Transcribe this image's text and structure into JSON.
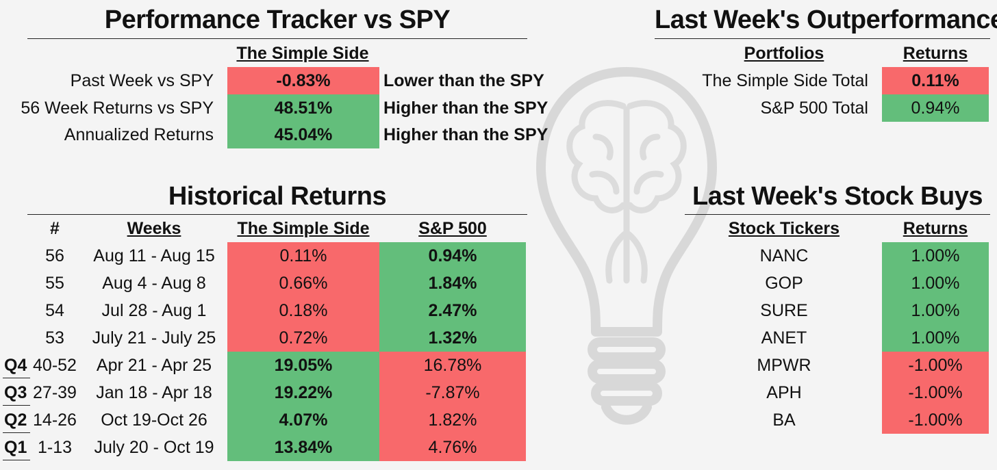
{
  "tracker": {
    "title": "Performance Tracker vs SPY",
    "column_header": "The Simple Side",
    "rows": [
      {
        "label": "Past Week vs SPY",
        "value": "-0.83%",
        "note": "Lower than the SPY",
        "status": "red"
      },
      {
        "label": "56 Week Returns vs SPY",
        "value": "48.51%",
        "note": "Higher than the SPY",
        "status": "green"
      },
      {
        "label": "Annualized Returns",
        "value": "45.04%",
        "note": "Higher than the SPY",
        "status": "green"
      }
    ]
  },
  "outperformance": {
    "title": "Last Week's Outperformance",
    "headers": {
      "portfolios": "Portfolios",
      "returns": "Returns"
    },
    "rows": [
      {
        "portfolio": "The Simple Side Total",
        "return": "0.11%",
        "status": "red"
      },
      {
        "portfolio": "S&P 500 Total",
        "return": "0.94%",
        "status": "green"
      }
    ]
  },
  "historical": {
    "title": "Historical Returns",
    "headers": {
      "num": "#",
      "weeks": "Weeks",
      "simple": "The Simple Side",
      "sp": "S&P 500"
    },
    "rows": [
      {
        "quarter": "",
        "num": "56",
        "weeks": "Aug 11 - Aug 15",
        "simple": "0.11%",
        "sp": "0.94%"
      },
      {
        "quarter": "",
        "num": "55",
        "weeks": "Aug 4 - Aug 8",
        "simple": "0.66%",
        "sp": "1.84%"
      },
      {
        "quarter": "",
        "num": "54",
        "weeks": "Jul 28 - Aug 1",
        "simple": "0.18%",
        "sp": "2.47%"
      },
      {
        "quarter": "",
        "num": "53",
        "weeks": "July 21 - July 25",
        "simple": "0.72%",
        "sp": "1.32%"
      },
      {
        "quarter": "Q4",
        "num": "40-52",
        "weeks": "Apr 21 - Apr 25",
        "simple": "19.05%",
        "sp": "16.78%"
      },
      {
        "quarter": "Q3",
        "num": "27-39",
        "weeks": "Jan 18 - Apr 18",
        "simple": "19.22%",
        "sp": "-7.87%"
      },
      {
        "quarter": "Q2",
        "num": "14-26",
        "weeks": "Oct 19-Oct 26",
        "simple": "4.07%",
        "sp": "1.82%"
      },
      {
        "quarter": "Q1",
        "num": "1-13",
        "weeks": "July 20 - Oct 19",
        "simple": "13.84%",
        "sp": "4.76%"
      }
    ]
  },
  "stock_buys": {
    "title": "Last Week's Stock Buys",
    "headers": {
      "tickers": "Stock Tickers",
      "returns": "Returns"
    },
    "rows": [
      {
        "ticker": "NANC",
        "return": "1.00%",
        "status": "green"
      },
      {
        "ticker": "GOP",
        "return": "1.00%",
        "status": "green"
      },
      {
        "ticker": "SURE",
        "return": "1.00%",
        "status": "green"
      },
      {
        "ticker": "ANET",
        "return": "1.00%",
        "status": "green"
      },
      {
        "ticker": "MPWR",
        "return": "-1.00%",
        "status": "red"
      },
      {
        "ticker": "APH",
        "return": "-1.00%",
        "status": "red"
      },
      {
        "ticker": "BA",
        "return": "-1.00%",
        "status": "red"
      }
    ]
  },
  "colors": {
    "green": "#63be7b",
    "red": "#f8696b",
    "background": "#f4f4f4"
  },
  "watermark": {
    "icon": "lightbulb-brain-icon"
  }
}
